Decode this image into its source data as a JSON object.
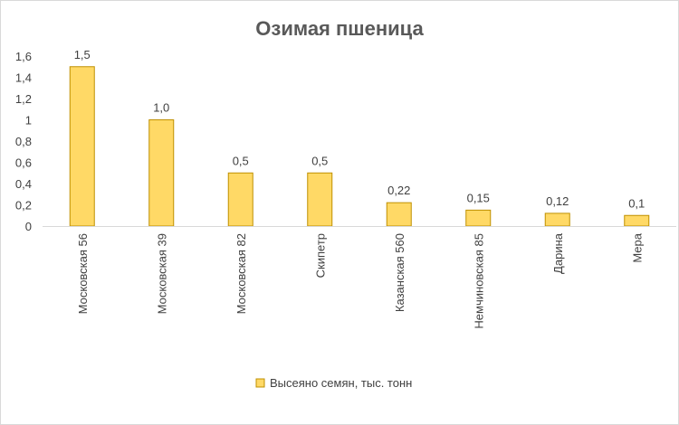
{
  "chart_data": {
    "type": "bar",
    "title": "Озимая пшеница",
    "categories": [
      "Московская 56",
      "Московская 39",
      "Московская 82",
      "Скипетр",
      "Казанская 560",
      "Немчиновская 85",
      "Дарина",
      "Мера"
    ],
    "series": [
      {
        "name": "Высеяно семян, тыс. тонн",
        "values": [
          1.5,
          1.0,
          0.5,
          0.5,
          0.22,
          0.15,
          0.12,
          0.1
        ],
        "labels": [
          "1,5",
          "1,0",
          "0,5",
          "0,5",
          "0,22",
          "0,15",
          "0,12",
          "0,1"
        ],
        "color": "#ffd966",
        "border_color": "#bf9000"
      }
    ],
    "ylim": [
      0,
      1.6
    ],
    "yticks": [
      0,
      0.2,
      0.4,
      0.6,
      0.8,
      1,
      1.2,
      1.4,
      1.6
    ],
    "ytick_labels": [
      "0",
      "0,2",
      "0,4",
      "0,6",
      "0,8",
      "1",
      "1,2",
      "1,4",
      "1,6"
    ],
    "xlabel": "",
    "ylabel": "",
    "grid": false,
    "legend_position": "bottom"
  }
}
